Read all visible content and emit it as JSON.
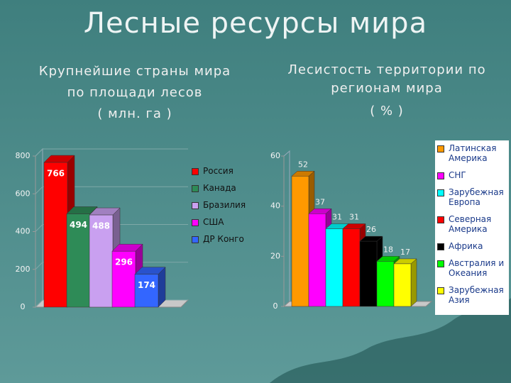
{
  "title": "Лесные ресурсы мира",
  "chart_data": [
    {
      "type": "bar3d",
      "title": [
        "Крупнейшие страны мира",
        "по площади лесов",
        "( млн. га )"
      ],
      "categories": [
        "Россия",
        "Канада",
        "Бразилия",
        "США",
        "ДР Конго"
      ],
      "values": [
        766,
        494,
        488,
        296,
        174
      ],
      "colors": [
        "#ff0000",
        "#2e8b57",
        "#c9a0f0",
        "#ff00ff",
        "#3366ff"
      ],
      "ylim": [
        0,
        800
      ],
      "yticks": [
        0,
        200,
        400,
        600,
        800
      ],
      "grid": true,
      "legend": "right"
    },
    {
      "type": "bar3d",
      "title": [
        "Лесистость территории по регионам мира",
        "( % )"
      ],
      "categories": [
        "Латинская Америка",
        "СНГ",
        "Зарубежная Европа",
        "Северная Америка",
        "Африка",
        "Австралия и Океания",
        "Зарубежная Азия"
      ],
      "values": [
        52,
        37,
        31,
        31,
        26,
        18,
        17
      ],
      "colors": [
        "#ff9900",
        "#ff00ff",
        "#00ffff",
        "#ff0000",
        "#000000",
        "#00ff00",
        "#ffff00"
      ],
      "ylim": [
        0,
        60
      ],
      "yticks": [
        0,
        20,
        40,
        60
      ],
      "grid": false,
      "legend": "right"
    }
  ]
}
